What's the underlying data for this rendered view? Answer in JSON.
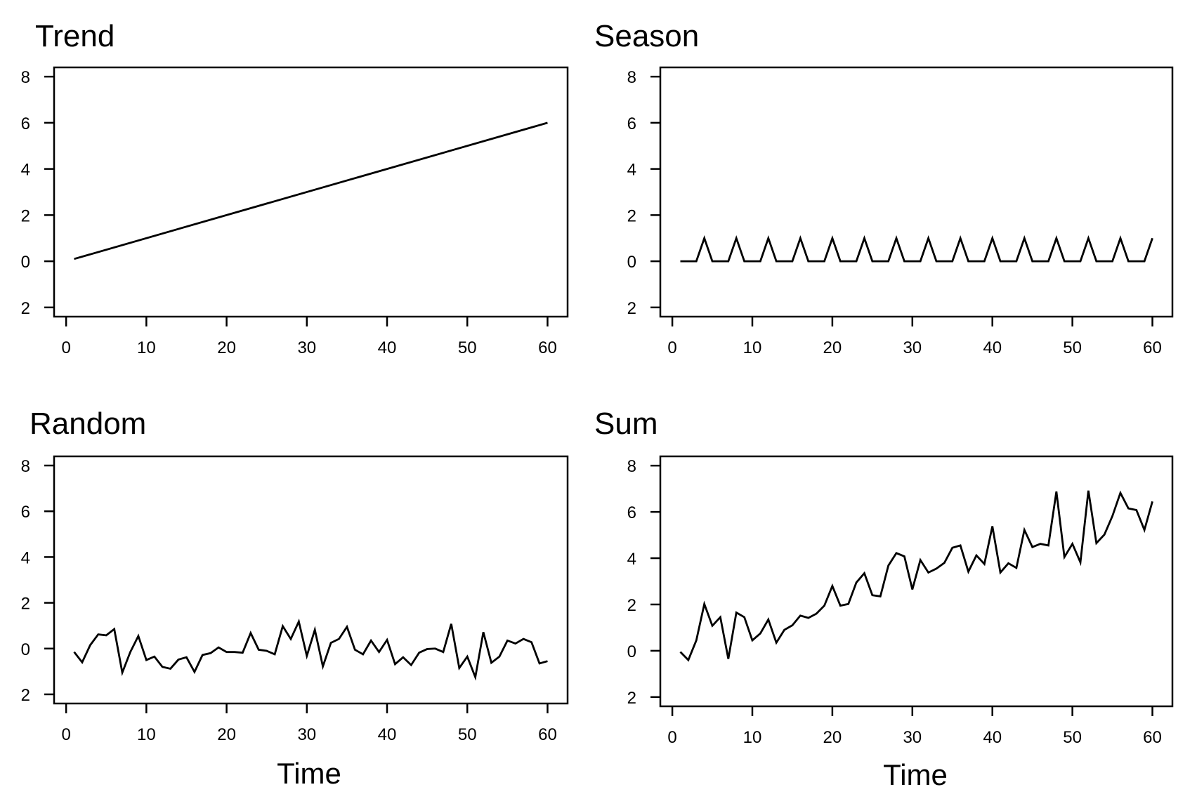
{
  "chart_data": [
    {
      "type": "line",
      "title": "Trend",
      "xlabel": "",
      "ylabel": "",
      "xlim": [
        -1.5,
        62.5
      ],
      "ylim": [
        -2.4,
        8.4
      ],
      "xticks": [
        0,
        10,
        20,
        30,
        40,
        50,
        60
      ],
      "xtick_labels": [
        "0",
        "10",
        "20",
        "30",
        "40",
        "50",
        "60"
      ],
      "yticks": [
        8,
        6,
        4,
        2,
        0,
        -2
      ],
      "ytick_labels": [
        "8",
        "6",
        "4",
        "2",
        "0",
        "2"
      ],
      "grid": false,
      "x": [
        1,
        60
      ],
      "y": [
        0.1,
        6.0
      ]
    },
    {
      "type": "line",
      "title": "Season",
      "xlabel": "",
      "ylabel": "",
      "xlim": [
        -1.5,
        62.5
      ],
      "ylim": [
        -2.4,
        8.4
      ],
      "xticks": [
        0,
        10,
        20,
        30,
        40,
        50,
        60
      ],
      "xtick_labels": [
        "0",
        "10",
        "20",
        "30",
        "40",
        "50",
        "60"
      ],
      "yticks": [
        8,
        6,
        4,
        2,
        0,
        -2
      ],
      "ytick_labels": [
        "8",
        "6",
        "4",
        "2",
        "0",
        "2"
      ],
      "grid": false,
      "x": [
        1,
        2,
        3,
        4,
        5,
        6,
        7,
        8,
        9,
        10,
        11,
        12,
        13,
        14,
        15,
        16,
        17,
        18,
        19,
        20,
        21,
        22,
        23,
        24,
        25,
        26,
        27,
        28,
        29,
        30,
        31,
        32,
        33,
        34,
        35,
        36,
        37,
        38,
        39,
        40,
        41,
        42,
        43,
        44,
        45,
        46,
        47,
        48,
        49,
        50,
        51,
        52,
        53,
        54,
        55,
        56,
        57,
        58,
        59,
        60
      ],
      "y": [
        0,
        0,
        0,
        1,
        0,
        0,
        0,
        1,
        0,
        0,
        0,
        1,
        0,
        0,
        0,
        1,
        0,
        0,
        0,
        1,
        0,
        0,
        0,
        1,
        0,
        0,
        0,
        1,
        0,
        0,
        0,
        1,
        0,
        0,
        0,
        1,
        0,
        0,
        0,
        1,
        0,
        0,
        0,
        1,
        0,
        0,
        0,
        1,
        0,
        0,
        0,
        1,
        0,
        0,
        0,
        1,
        0,
        0,
        0,
        1
      ]
    },
    {
      "type": "line",
      "title": "Random",
      "xlabel": "Time",
      "ylabel": "",
      "xlim": [
        -1.5,
        62.5
      ],
      "ylim": [
        -2.4,
        8.4
      ],
      "xticks": [
        0,
        10,
        20,
        30,
        40,
        50,
        60
      ],
      "xtick_labels": [
        "0",
        "10",
        "20",
        "30",
        "40",
        "50",
        "60"
      ],
      "yticks": [
        8,
        6,
        4,
        2,
        0,
        -2
      ],
      "ytick_labels": [
        "8",
        "6",
        "4",
        "2",
        "0",
        "2"
      ],
      "grid": false,
      "x": [
        1,
        2,
        3,
        4,
        5,
        6,
        7,
        8,
        9,
        10,
        11,
        12,
        13,
        14,
        15,
        16,
        17,
        18,
        19,
        20,
        21,
        22,
        23,
        24,
        25,
        26,
        27,
        28,
        29,
        30,
        31,
        32,
        33,
        34,
        35,
        36,
        37,
        38,
        39,
        40,
        41,
        42,
        43,
        44,
        45,
        46,
        47,
        48,
        49,
        50,
        51,
        52,
        53,
        54,
        55,
        56,
        57,
        58,
        59,
        60
      ],
      "y": [
        -0.15,
        -0.6,
        0.15,
        0.62,
        0.58,
        0.85,
        -1.05,
        -0.15,
        0.55,
        -0.5,
        -0.35,
        -0.8,
        -0.88,
        -0.48,
        -0.38,
        -1.02,
        -0.28,
        -0.2,
        0.05,
        -0.15,
        -0.15,
        -0.18,
        0.68,
        -0.05,
        -0.1,
        -0.25,
        0.98,
        0.42,
        1.18,
        -0.32,
        0.82,
        -0.78,
        0.25,
        0.42,
        0.95,
        -0.05,
        -0.25,
        0.35,
        -0.15,
        0.38,
        -0.68,
        -0.38,
        -0.72,
        -0.18,
        -0.02,
        0.0,
        -0.15,
        1.08,
        -0.85,
        -0.35,
        -1.25,
        0.72,
        -0.62,
        -0.35,
        0.35,
        0.22,
        0.42,
        0.28,
        -0.65,
        -0.55
      ]
    },
    {
      "type": "line",
      "title": "Sum",
      "xlabel": "Time",
      "ylabel": "",
      "xlim": [
        -1.5,
        62.5
      ],
      "ylim": [
        -2.4,
        8.4
      ],
      "xticks": [
        0,
        10,
        20,
        30,
        40,
        50,
        60
      ],
      "xtick_labels": [
        "0",
        "10",
        "20",
        "30",
        "40",
        "50",
        "60"
      ],
      "yticks": [
        8,
        6,
        4,
        2,
        0,
        -2
      ],
      "ytick_labels": [
        "8",
        "6",
        "4",
        "2",
        "0",
        "2"
      ],
      "grid": false,
      "x": [
        1,
        2,
        3,
        4,
        5,
        6,
        7,
        8,
        9,
        10,
        11,
        12,
        13,
        14,
        15,
        16,
        17,
        18,
        19,
        20,
        21,
        22,
        23,
        24,
        25,
        26,
        27,
        28,
        29,
        30,
        31,
        32,
        33,
        34,
        35,
        36,
        37,
        38,
        39,
        40,
        41,
        42,
        43,
        44,
        45,
        46,
        47,
        48,
        49,
        50,
        51,
        52,
        53,
        54,
        55,
        56,
        57,
        58,
        59,
        60
      ],
      "y": [
        -0.05,
        -0.4,
        0.45,
        2.02,
        1.08,
        1.45,
        -0.35,
        1.65,
        1.45,
        0.45,
        0.75,
        1.35,
        0.35,
        0.9,
        1.1,
        1.52,
        1.42,
        1.6,
        1.95,
        2.8,
        1.95,
        2.02,
        2.95,
        3.35,
        2.4,
        2.35,
        3.68,
        4.22,
        4.08,
        2.65,
        3.92,
        3.38,
        3.55,
        3.8,
        4.45,
        4.55,
        3.42,
        4.12,
        3.75,
        5.38,
        3.38,
        3.78,
        3.58,
        5.22,
        4.48,
        4.62,
        4.55,
        6.88,
        4.05,
        4.62,
        3.82,
        6.92,
        4.65,
        5.02,
        5.82,
        6.82,
        6.15,
        6.08,
        5.22,
        6.45
      ]
    }
  ]
}
